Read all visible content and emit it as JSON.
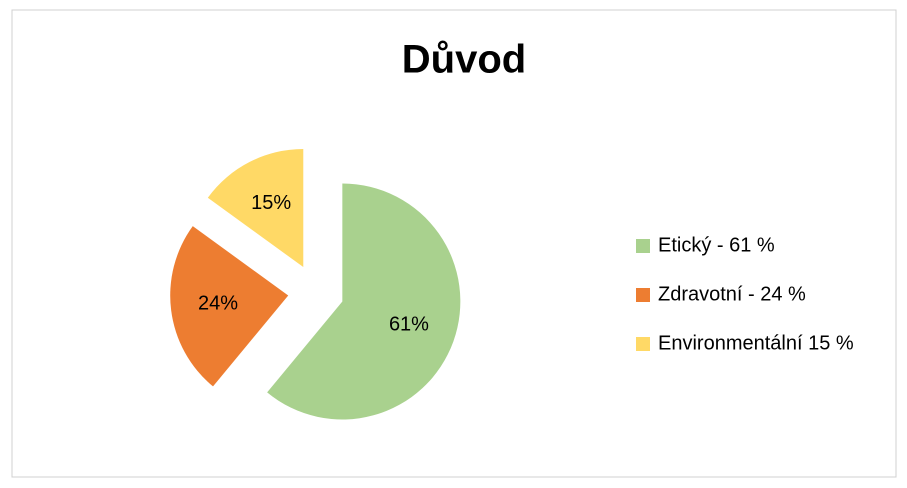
{
  "chart_data": {
    "type": "pie",
    "title": "Důvod",
    "categories": [
      "Etický - 61 %",
      "Zdravotní - 24 %",
      "Environmentální 15 %"
    ],
    "values": [
      61,
      24,
      15
    ],
    "value_labels": [
      "61%",
      "24%",
      "15%"
    ],
    "colors": [
      "#a9d18e",
      "#ed7d31",
      "#ffd966"
    ],
    "legend": "right"
  }
}
